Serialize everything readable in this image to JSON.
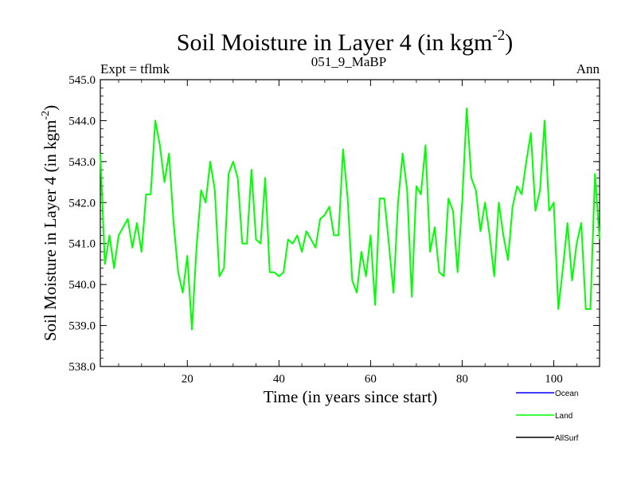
{
  "chart_data": {
    "type": "line",
    "title_main": "Soil Moisture in Layer 4 (in kgm",
    "title_sup": "-2",
    "title_close": ")",
    "subtitle_left": "Expt = tflmk",
    "subtitle_center": "051_9_MaBP",
    "subtitle_right": "Ann",
    "xlabel": "Time (in years since start)",
    "ylabel_main": "Soil Moisture in Layer 4 (in kgm",
    "ylabel_sup": "-2",
    "ylabel_close": ")",
    "xlim": [
      1,
      110
    ],
    "ylim": [
      538.0,
      545.0
    ],
    "x_ticks": [
      20,
      40,
      60,
      80,
      100
    ],
    "x_tick_labels": [
      "20",
      "40",
      "60",
      "80",
      "100"
    ],
    "y_ticks": [
      538.0,
      539.0,
      540.0,
      541.0,
      542.0,
      543.0,
      544.0,
      545.0
    ],
    "y_tick_labels": [
      "538.0",
      "539.0",
      "540.0",
      "541.0",
      "542.0",
      "543.0",
      "544.0",
      "545.0"
    ],
    "legend": [
      {
        "name": "Ocean",
        "color": "#0000ff"
      },
      {
        "name": "Land",
        "color": "#00ff00"
      },
      {
        "name": "AllSurf",
        "color": "#000000"
      }
    ],
    "series": [
      {
        "name": "Land",
        "color": "#00ff00",
        "x_start": 1,
        "x_step": 1,
        "values": [
          543.2,
          540.5,
          541.2,
          540.4,
          541.2,
          541.4,
          541.6,
          540.9,
          541.5,
          540.8,
          542.2,
          542.2,
          544.0,
          543.4,
          542.5,
          543.2,
          541.5,
          540.3,
          539.8,
          540.7,
          538.9,
          540.9,
          542.3,
          542.0,
          543.0,
          542.3,
          540.2,
          540.4,
          542.7,
          543.0,
          542.6,
          541.0,
          541.0,
          542.8,
          541.1,
          541.0,
          542.6,
          540.3,
          540.3,
          540.2,
          540.3,
          541.1,
          541.0,
          541.2,
          540.8,
          541.3,
          541.1,
          540.9,
          541.6,
          541.7,
          541.9,
          541.2,
          541.2,
          543.3,
          542.1,
          540.1,
          539.8,
          540.8,
          540.2,
          541.2,
          539.5,
          542.1,
          542.1,
          541.0,
          539.8,
          542.0,
          543.2,
          542.3,
          539.7,
          542.4,
          542.2,
          543.4,
          540.8,
          541.4,
          540.3,
          540.2,
          542.1,
          541.8,
          540.3,
          542.0,
          544.3,
          542.6,
          542.3,
          541.3,
          542.0,
          541.2,
          540.2,
          542.0,
          541.2,
          540.6,
          541.9,
          542.4,
          542.2,
          543.0,
          543.7,
          541.8,
          542.3,
          544.0,
          541.8,
          542.0,
          539.4,
          540.4,
          541.5,
          540.1,
          541.0,
          541.5,
          539.4,
          539.4,
          542.7,
          541.1
        ]
      }
    ]
  }
}
